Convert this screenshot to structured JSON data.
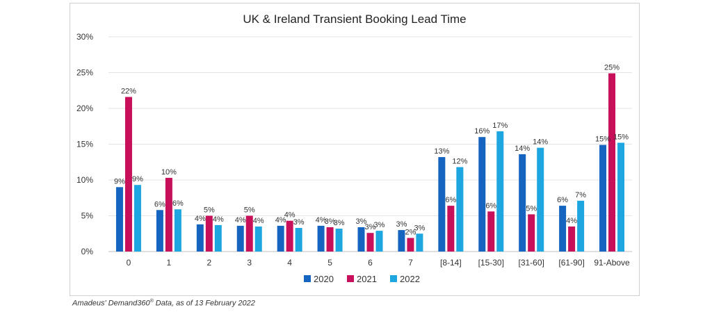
{
  "chart_data": {
    "type": "bar",
    "title": "UK & Ireland Transient Booking Lead Time",
    "xlabel": "",
    "ylabel": "",
    "ylim": [
      0,
      30
    ],
    "y_ticks": [
      "0%",
      "5%",
      "10%",
      "15%",
      "20%",
      "25%",
      "30%"
    ],
    "y_tick_values": [
      0,
      5,
      10,
      15,
      20,
      25,
      30
    ],
    "grid": true,
    "legend_position": "bottom",
    "categories": [
      "0",
      "1",
      "2",
      "3",
      "4",
      "5",
      "6",
      "7",
      "[8-14]",
      "[15-30]",
      "[31-60]",
      "[61-90]",
      "91-Above"
    ],
    "series": [
      {
        "name": "2020",
        "color": "#1565c0",
        "values": [
          9.0,
          5.8,
          3.8,
          3.6,
          3.6,
          3.6,
          3.4,
          3.0,
          13.2,
          16.0,
          13.6,
          6.4,
          14.9
        ],
        "labels": [
          "9%",
          "6%",
          "4%",
          "4%",
          "4%",
          "4%",
          "3%",
          "3%",
          "13%",
          "16%",
          "14%",
          "6%",
          "15%"
        ]
      },
      {
        "name": "2021",
        "color": "#c8105a",
        "values": [
          21.6,
          10.3,
          5.0,
          5.0,
          4.3,
          3.4,
          2.6,
          1.9,
          6.4,
          5.6,
          5.2,
          3.5,
          24.9
        ],
        "labels": [
          "22%",
          "10%",
          "5%",
          "5%",
          "4%",
          "3%",
          "3%",
          "2%",
          "6%",
          "6%",
          "5%",
          "4%",
          "25%"
        ]
      },
      {
        "name": "2022",
        "color": "#1ea6e0",
        "values": [
          9.3,
          5.9,
          3.7,
          3.5,
          3.3,
          3.2,
          2.9,
          2.5,
          11.8,
          16.8,
          14.5,
          7.1,
          15.2
        ],
        "labels": [
          "9%",
          "6%",
          "4%",
          "4%",
          "3%",
          "3%",
          "3%",
          "3%",
          "12%",
          "17%",
          "14%",
          "7%",
          "15%"
        ]
      }
    ]
  },
  "source_note": {
    "prefix": "Amadeus' Demand360",
    "reg": "®",
    "suffix": " Data, as of 13 February 2022"
  }
}
